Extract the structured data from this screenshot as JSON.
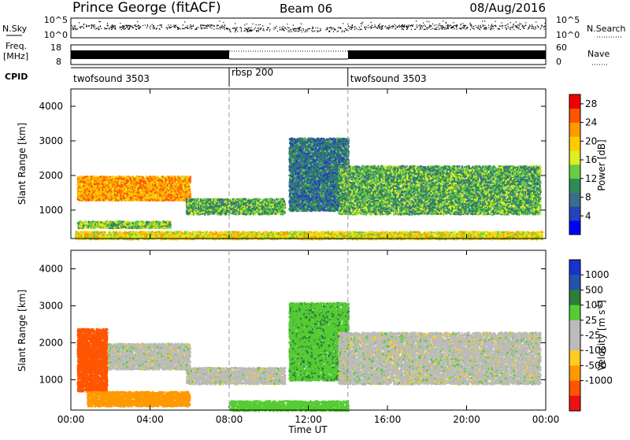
{
  "header": {
    "station": "Prince George (fitACF)",
    "beam": "Beam 06",
    "date": "08/Aug/2016"
  },
  "strip_nsky": {
    "label": "N.Sky",
    "left_ticks": [
      "10^5",
      "10^0"
    ],
    "right_ticks": [
      "10^5",
      "10^0"
    ],
    "right_label": "N.Search"
  },
  "strip_freq": {
    "label_line1": "Freq.",
    "label_line2": "[MHz]",
    "left_ticks": [
      "18",
      "8"
    ],
    "right_ticks": [
      "60",
      "0"
    ],
    "right_label": "Nave",
    "gap_hours": [
      8.0,
      14.0
    ]
  },
  "cpid": {
    "label": "CPID",
    "segments": [
      {
        "start_hour": 0,
        "end_hour": 8,
        "name": "twofsound 3503"
      },
      {
        "start_hour": 8,
        "end_hour": 14,
        "name": "rbsp 200"
      },
      {
        "start_hour": 14,
        "end_hour": 24,
        "name": "twofsound 3503"
      }
    ]
  },
  "colors": {
    "power_scale": [
      "#0000ff",
      "#2244bb",
      "#3a6e8a",
      "#2e8b57",
      "#66cc44",
      "#ddee22",
      "#ffcc00",
      "#ff9900",
      "#ff5500",
      "#ee0000"
    ],
    "velocity_scale": [
      "#1a33cc",
      "#2255aa",
      "#2e7d3a",
      "#55cc33",
      "#bbbbbb",
      "#bbbbbb",
      "#ffcc22",
      "#ff9900",
      "#ff5500",
      "#ee1111"
    ]
  },
  "chart_data": [
    {
      "type": "heatmap",
      "title": "",
      "xlabel": "Time UT",
      "ylabel": "Slant Range [km]",
      "xlim": [
        0,
        24
      ],
      "ylim": [
        180,
        4500
      ],
      "x_ticks": [
        "00:00",
        "04:00",
        "08:00",
        "12:00",
        "16:00",
        "20:00",
        "00:00"
      ],
      "y_ticks": [
        1000,
        2000,
        3000,
        4000
      ],
      "colorbar": {
        "label": "Power [dB]",
        "ticks": [
          "4",
          "8",
          "12",
          "16",
          "20",
          "24",
          "28"
        ],
        "range": [
          0,
          30
        ]
      },
      "bands": [
        {
          "t0": 0.3,
          "t1": 6.0,
          "r0": 1300,
          "r1": 2000,
          "value": 22
        },
        {
          "t0": 0.3,
          "t1": 5.0,
          "r0": 500,
          "r1": 700,
          "value": 14
        },
        {
          "t0": 5.8,
          "t1": 10.8,
          "r0": 900,
          "r1": 1350,
          "value": 12
        },
        {
          "t0": 11.0,
          "t1": 14.0,
          "r0": 1000,
          "r1": 3100,
          "value": 8
        },
        {
          "t0": 13.5,
          "t1": 23.7,
          "r0": 900,
          "r1": 2300,
          "value": 12
        },
        {
          "t0": 0.2,
          "t1": 23.8,
          "r0": 180,
          "r1": 400,
          "value": 18
        }
      ]
    },
    {
      "type": "heatmap",
      "title": "",
      "xlabel": "Time UT",
      "ylabel": "Slant Range [km]",
      "xlim": [
        0,
        24
      ],
      "ylim": [
        180,
        4500
      ],
      "x_ticks": [
        "00:00",
        "04:00",
        "08:00",
        "12:00",
        "16:00",
        "20:00",
        "00:00"
      ],
      "y_ticks": [
        1000,
        2000,
        3000,
        4000
      ],
      "colorbar": {
        "label": "Velocity [m s^-1]",
        "ticks": [
          "1000",
          "500",
          "100",
          "25",
          "-25",
          "-100",
          "-500",
          "-1000"
        ]
      },
      "bands": [
        {
          "t0": 0.3,
          "t1": 6.0,
          "r0": 1300,
          "r1": 2000,
          "value": 0
        },
        {
          "t0": 0.3,
          "t1": 1.8,
          "r0": 700,
          "r1": 2400,
          "value": -600
        },
        {
          "t0": 0.8,
          "t1": 6.0,
          "r0": 300,
          "r1": 700,
          "value": -150
        },
        {
          "t0": 5.8,
          "t1": 10.8,
          "r0": 900,
          "r1": 1350,
          "value": 0
        },
        {
          "t0": 11.0,
          "t1": 14.0,
          "r0": 1000,
          "r1": 3100,
          "value": 80
        },
        {
          "t0": 13.5,
          "t1": 23.7,
          "r0": 900,
          "r1": 2300,
          "value": 0
        },
        {
          "t0": 8.0,
          "t1": 14.0,
          "r0": 180,
          "r1": 450,
          "value": 60
        }
      ]
    }
  ]
}
